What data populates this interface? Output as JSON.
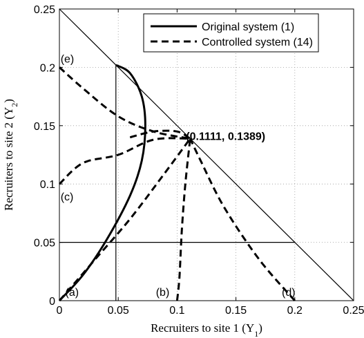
{
  "chart_data": {
    "type": "line",
    "xlabel": "Recruiters to site 1 (Y",
    "xlabel_sub": "1",
    "xlabel_end": ")",
    "ylabel": "Recruiters to site 2 (Y",
    "ylabel_sub": "2",
    "ylabel_end": ")",
    "xlim": [
      0,
      0.25
    ],
    "ylim": [
      0,
      0.25
    ],
    "xticks": [
      0,
      0.05,
      0.1,
      0.15,
      0.2,
      0.25
    ],
    "yticks": [
      0,
      0.05,
      0.1,
      0.15,
      0.2,
      0.25
    ],
    "xtick_labels": [
      "0",
      "0.05",
      "0.1",
      "0.15",
      "0.2",
      "0.25"
    ],
    "ytick_labels": [
      "0",
      "0.05",
      "0.1",
      "0.15",
      "0.2",
      "0.25"
    ],
    "grid": "dotted",
    "legend_position": "top-right",
    "series": [
      {
        "name": "Original system (1)",
        "style": "solid",
        "x": [
          0,
          0.02,
          0.04,
          0.06,
          0.07,
          0.073,
          0.07,
          0.06,
          0.048
        ],
        "y": [
          0,
          0.022,
          0.052,
          0.09,
          0.12,
          0.15,
          0.175,
          0.195,
          0.202
        ]
      },
      {
        "name": "Controlled system (14)",
        "style": "dashed",
        "curves": [
          {
            "x": [
              0,
              0.03,
              0.06,
              0.09,
              0.1111
            ],
            "y": [
              0,
              0.035,
              0.07,
              0.11,
              0.1389
            ]
          },
          {
            "x": [
              0.1,
              0.102,
              0.104,
              0.107,
              0.1111
            ],
            "y": [
              0,
              0.02,
              0.06,
              0.1,
              0.1389
            ]
          },
          {
            "x": [
              0.2,
              0.17,
              0.14,
              0.12,
              0.1111
            ],
            "y": [
              0,
              0.035,
              0.08,
              0.12,
              0.1389
            ]
          },
          {
            "x": [
              0,
              0.02,
              0.05,
              0.08,
              0.1111
            ],
            "y": [
              0.1,
              0.118,
              0.125,
              0.138,
              0.1389
            ]
          },
          {
            "x": [
              0,
              0.02,
              0.05,
              0.08,
              0.1111
            ],
            "y": [
              0.2,
              0.182,
              0.158,
              0.145,
              0.1389
            ]
          },
          {
            "x": [
              0.06,
              0.08,
              0.1,
              0.1111
            ],
            "y": [
              0.14,
              0.145,
              0.145,
              0.1389
            ]
          }
        ]
      }
    ],
    "boundary_line": {
      "x": [
        0,
        0.25
      ],
      "y": [
        0.25,
        0
      ]
    },
    "ref_lines": [
      {
        "x": [
          0.048,
          0.048
        ],
        "y": [
          0,
          0.202
        ]
      },
      {
        "x": [
          0,
          0.2
        ],
        "y": [
          0.05,
          0.05
        ]
      }
    ],
    "equilibrium_label": "(0.1111, 0.1389)",
    "annotations": [
      {
        "text": "(a)",
        "x": 0.005,
        "y": 0.004
      },
      {
        "text": "(b)",
        "x": 0.082,
        "y": 0.004
      },
      {
        "text": "(c)",
        "x": 0.001,
        "y": 0.086
      },
      {
        "text": "(d)",
        "x": 0.189,
        "y": 0.004
      },
      {
        "text": "(e)",
        "x": 0.001,
        "y": 0.204
      }
    ]
  }
}
